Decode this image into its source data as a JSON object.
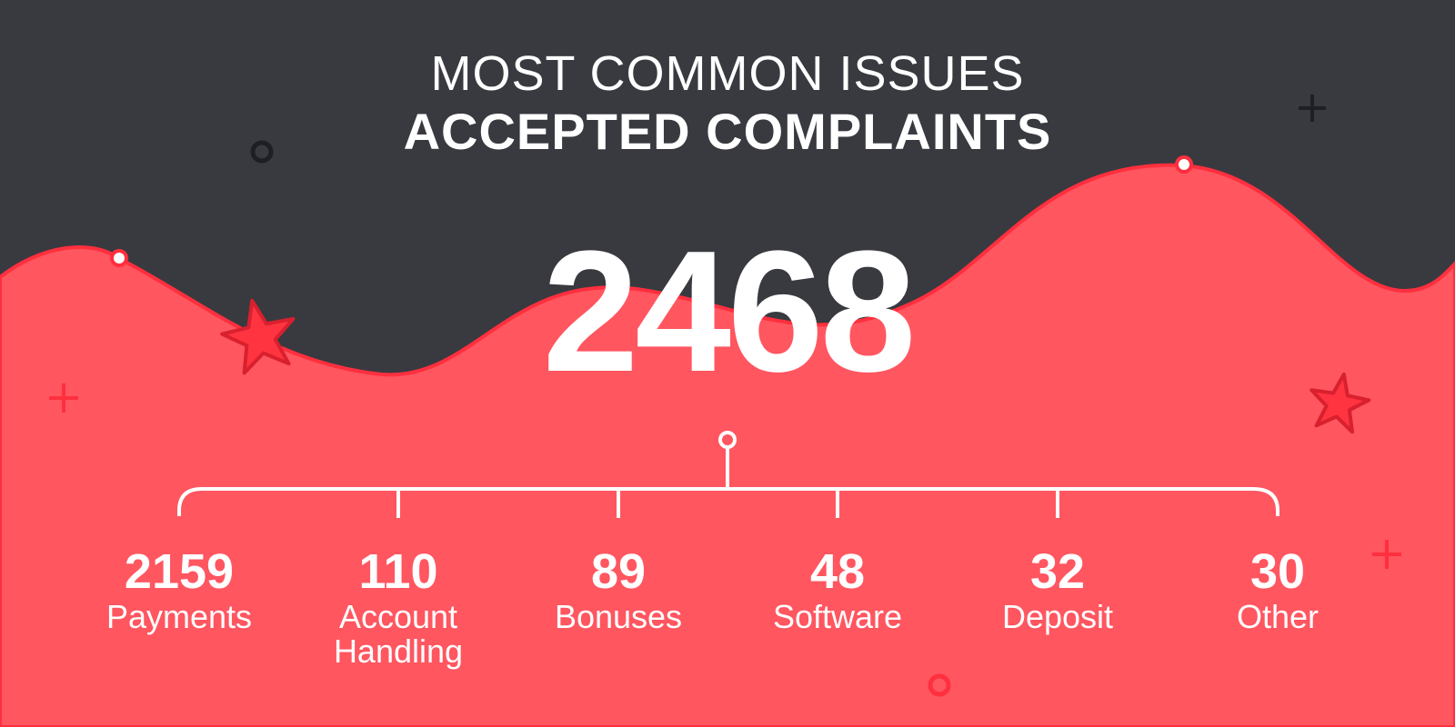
{
  "heading": {
    "line1": "MOST COMMON ISSUES",
    "line2": "ACCEPTED COMPLAINTS"
  },
  "total": "2468",
  "categories": [
    {
      "count": "2159",
      "label": "Payments"
    },
    {
      "count": "110",
      "label": "Account Handling"
    },
    {
      "count": "89",
      "label": "Bonuses"
    },
    {
      "count": "48",
      "label": "Software"
    },
    {
      "count": "32",
      "label": "Deposit"
    },
    {
      "count": "30",
      "label": "Other"
    }
  ],
  "colors": {
    "background_dark": "#383a40",
    "wave_red": "#ff5660",
    "wave_outline": "#ff2f3e",
    "star_red": "#ff2f3e",
    "text": "#ffffff"
  },
  "decorations": [
    "circle-outline-icon",
    "plus-icon",
    "star-icon"
  ]
}
